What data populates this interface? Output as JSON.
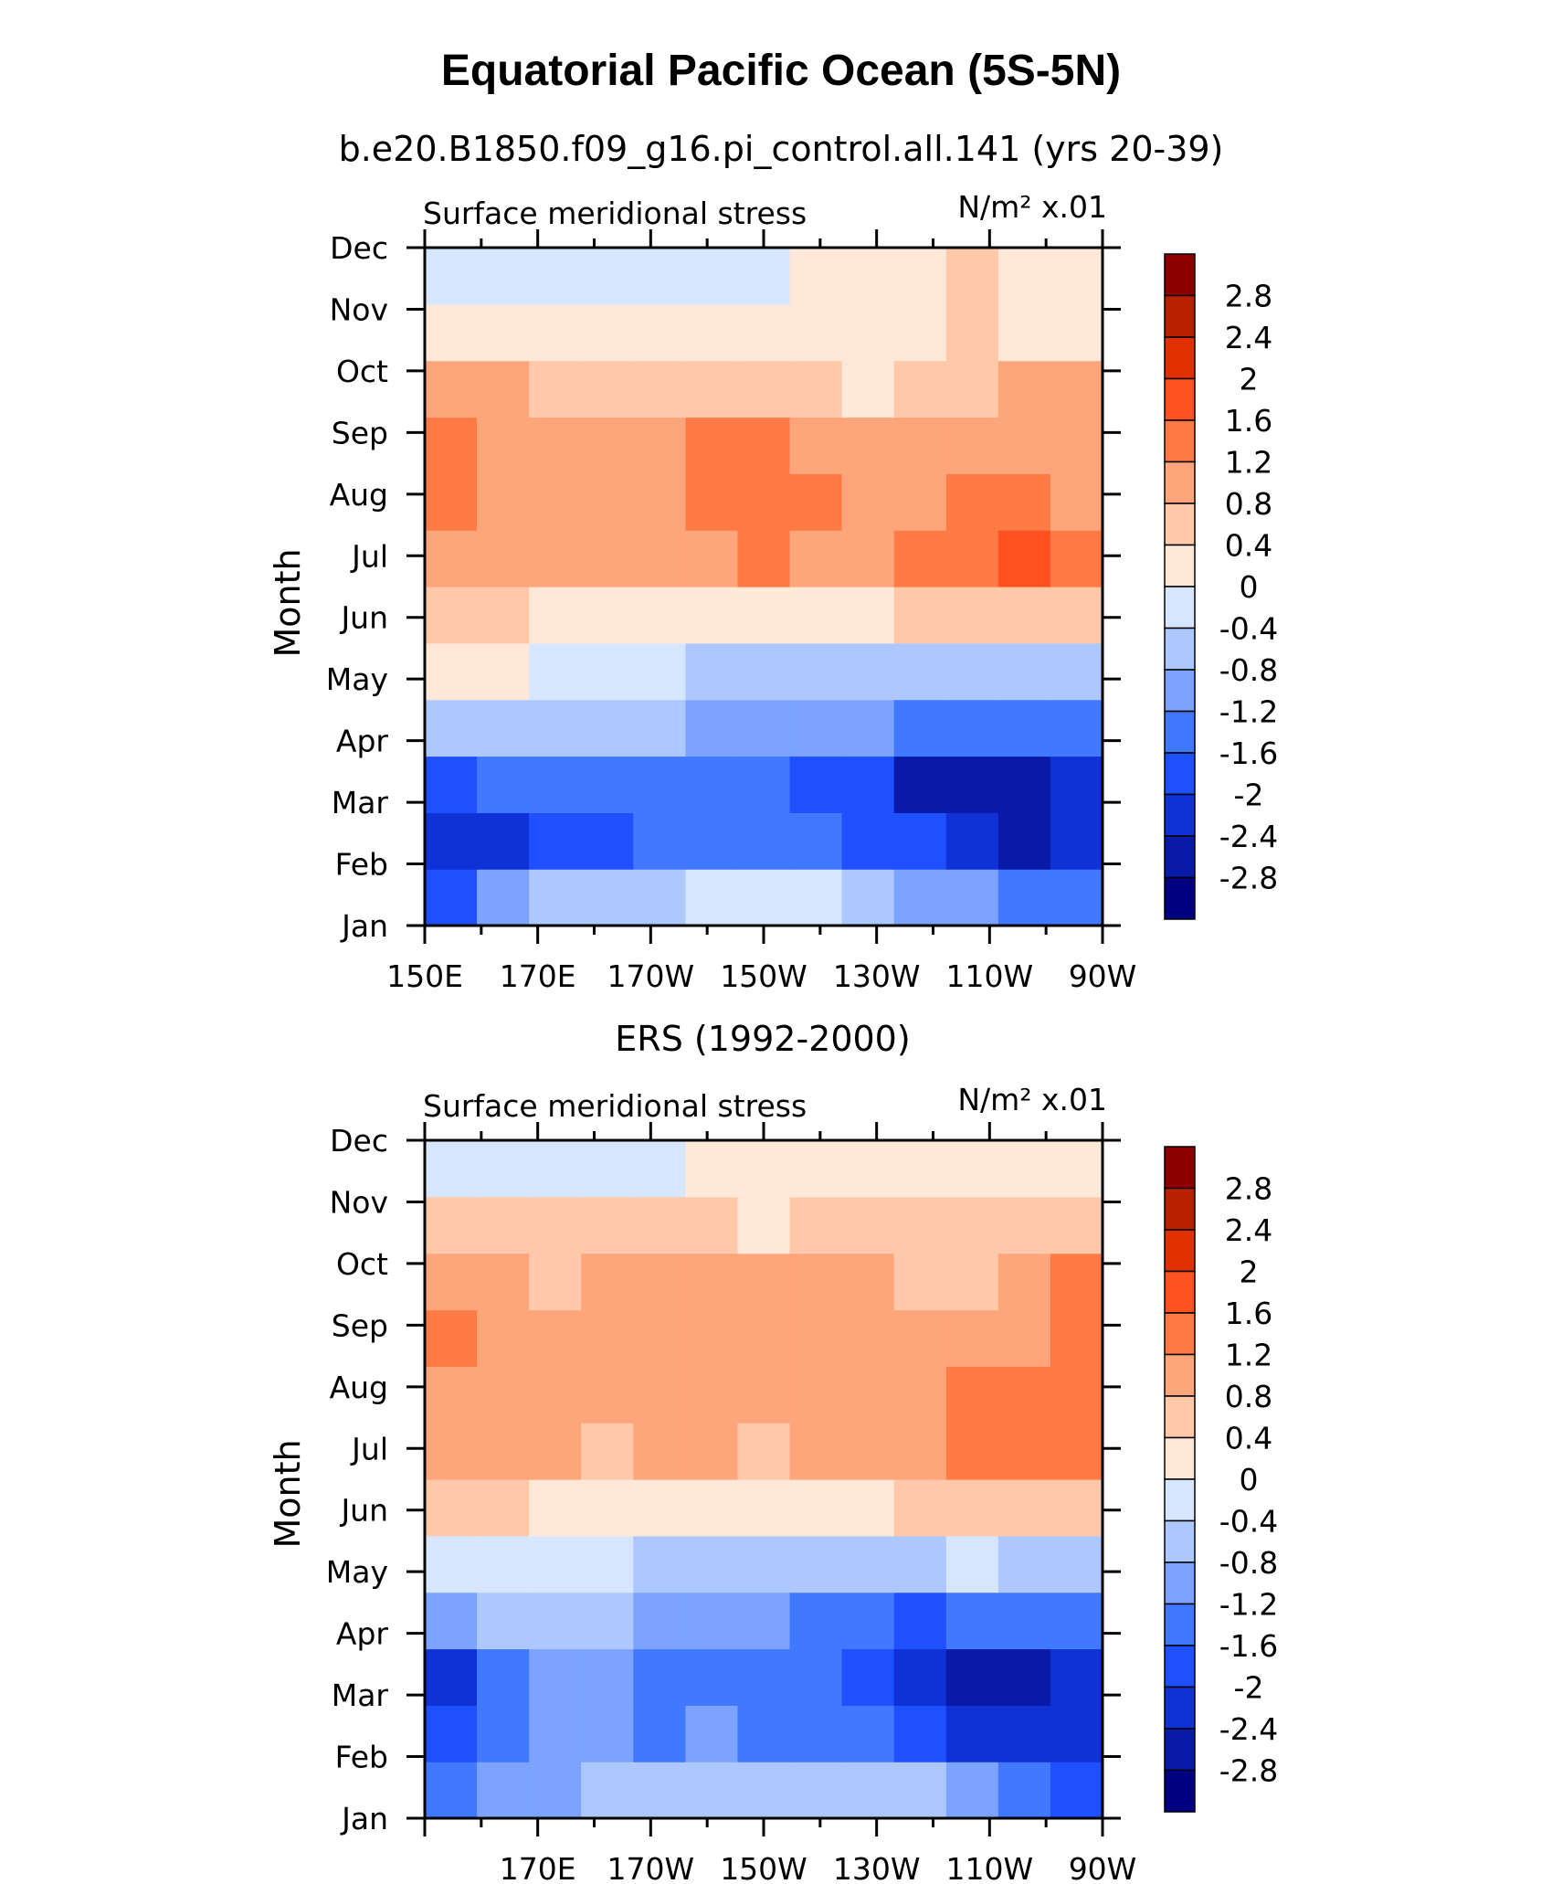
{
  "figure": {
    "title": "Equatorial Pacific Ocean (5S-5N)"
  },
  "chart_data": [
    {
      "type": "heatmap",
      "title": "b.e20.B1850.f09_g16.pi_control.all.141 (yrs 20-39)",
      "left_string": "Surface meridional stress",
      "units": "N/m² x.01",
      "ylabel": "Month",
      "x_ticklabels": [
        "150E",
        "170E",
        "170W",
        "150W",
        "130W",
        "110W",
        "90W"
      ],
      "x_values": [
        150,
        170,
        190,
        210,
        230,
        250,
        270
      ],
      "y": [
        "Jan",
        "Feb",
        "Mar",
        "Apr",
        "May",
        "Jun",
        "Jul",
        "Aug",
        "Sep",
        "Oct",
        "Nov",
        "Dec"
      ],
      "levels": [
        -2.8,
        -2.4,
        -2,
        -1.6,
        -1.2,
        -0.8,
        -0.4,
        0,
        0.4,
        0.8,
        1.2,
        1.6,
        2,
        2.4,
        2.8
      ],
      "level_labels": [
        "2.8",
        "2.4",
        "2",
        "1.6",
        "1.2",
        "0.8",
        "0.4",
        "0",
        "-0.4",
        "-0.8",
        "-1.2",
        "-1.6",
        "-2",
        "-2.4",
        "-2.8"
      ],
      "colors": [
        "#000080",
        "#0a1aa8",
        "#0f32d6",
        "#1e50ff",
        "#4078ff",
        "#7ba3ff",
        "#adc8ff",
        "#d6e6ff",
        "#ffe8d8",
        "#ffc8a8",
        "#ffa57c",
        "#ff7a45",
        "#ff5220",
        "#e03000",
        "#b82000",
        "#8c0000"
      ],
      "values": [
        [
          -1.8,
          -1.0,
          -0.8,
          -0.6,
          -0.5,
          -0.4,
          -0.3,
          -0.3,
          -0.6,
          -0.9,
          -1.2,
          -1.4,
          -1.6
        ],
        [
          -2.4,
          -2.2,
          -2.0,
          -1.8,
          -1.6,
          -1.5,
          -1.5,
          -1.5,
          -1.7,
          -2.0,
          -2.3,
          -2.5,
          -2.2
        ],
        [
          -2.0,
          -1.6,
          -1.4,
          -1.3,
          -1.5,
          -1.6,
          -1.6,
          -1.7,
          -2.0,
          -2.5,
          -2.8,
          -2.7,
          -2.2
        ],
        [
          -0.8,
          -0.6,
          -0.5,
          -0.6,
          -0.8,
          -1.1,
          -1.2,
          -1.2,
          -1.2,
          -1.3,
          -1.4,
          -1.4,
          -1.3
        ],
        [
          0.2,
          0.1,
          -0.1,
          -0.2,
          -0.4,
          -0.5,
          -0.5,
          -0.5,
          -0.5,
          -0.6,
          -0.6,
          -0.6,
          -0.7
        ],
        [
          0.5,
          0.4,
          0.3,
          0.2,
          0.1,
          0.2,
          0.2,
          0.2,
          0.3,
          0.4,
          0.5,
          0.6,
          0.7
        ],
        [
          1.0,
          0.9,
          0.8,
          0.8,
          0.8,
          1.1,
          1.2,
          1.0,
          0.8,
          1.2,
          1.4,
          1.6,
          1.3
        ],
        [
          1.3,
          1.1,
          1.0,
          1.0,
          1.1,
          1.4,
          1.5,
          1.3,
          1.0,
          1.1,
          1.3,
          1.3,
          1.1
        ],
        [
          1.3,
          1.0,
          0.9,
          0.9,
          1.0,
          1.2,
          1.2,
          1.0,
          0.8,
          0.8,
          0.9,
          1.0,
          0.9
        ],
        [
          0.9,
          0.8,
          0.7,
          0.7,
          0.7,
          0.6,
          0.5,
          0.4,
          0.3,
          0.5,
          0.7,
          0.8,
          0.8
        ],
        [
          0.3,
          0.3,
          0.3,
          0.3,
          0.2,
          0.2,
          0.1,
          0.1,
          0.2,
          0.3,
          0.5,
          0.3,
          0.3
        ],
        [
          -0.1,
          -0.1,
          -0.2,
          -0.2,
          -0.3,
          -0.2,
          -0.1,
          0.1,
          0.2,
          0.3,
          0.4,
          0.3,
          0.2
        ]
      ]
    },
    {
      "type": "heatmap",
      "title": "ERS (1992-2000)",
      "left_string": "Surface meridional stress",
      "units": "N/m² x.01",
      "ylabel": "Month",
      "x_ticklabels": [
        "170E",
        "170W",
        "150W",
        "130W",
        "110W",
        "90W"
      ],
      "x_values": [
        170,
        190,
        210,
        230,
        250,
        270
      ],
      "y": [
        "Jan",
        "Feb",
        "Mar",
        "Apr",
        "May",
        "Jun",
        "Jul",
        "Aug",
        "Sep",
        "Oct",
        "Nov",
        "Dec"
      ],
      "levels": [
        -2.8,
        -2.4,
        -2,
        -1.6,
        -1.2,
        -0.8,
        -0.4,
        0,
        0.4,
        0.8,
        1.2,
        1.6,
        2,
        2.4,
        2.8
      ],
      "level_labels": [
        "2.8",
        "2.4",
        "2",
        "1.6",
        "1.2",
        "0.8",
        "0.4",
        "0",
        "-0.4",
        "-0.8",
        "-1.2",
        "-1.6",
        "-2",
        "-2.4",
        "-2.8"
      ],
      "colors": [
        "#000080",
        "#0a1aa8",
        "#0f32d6",
        "#1e50ff",
        "#4078ff",
        "#7ba3ff",
        "#adc8ff",
        "#d6e6ff",
        "#ffe8d8",
        "#ffc8a8",
        "#ffa57c",
        "#ff7a45",
        "#ff5220",
        "#e03000",
        "#b82000",
        "#8c0000"
      ],
      "values": [
        [
          -1.3,
          -1.1,
          -0.9,
          -0.6,
          -0.7,
          -0.5,
          -0.5,
          -0.5,
          -0.6,
          -0.8,
          -1.1,
          -1.4,
          -1.7
        ],
        [
          -2.0,
          -1.6,
          -1.0,
          -1.1,
          -1.3,
          -1.2,
          -1.3,
          -1.3,
          -1.5,
          -2.0,
          -2.2,
          -2.4,
          -2.3
        ],
        [
          -2.1,
          -1.6,
          -1.0,
          -1.2,
          -1.4,
          -1.3,
          -1.4,
          -1.6,
          -2.0,
          -2.3,
          -2.5,
          -2.6,
          -2.3
        ],
        [
          -1.0,
          -0.8,
          -0.6,
          -0.8,
          -1.2,
          -1.1,
          -1.2,
          -1.4,
          -1.5,
          -1.7,
          -1.6,
          -1.5,
          -1.6
        ],
        [
          -0.3,
          -0.3,
          -0.2,
          -0.4,
          -0.5,
          -0.5,
          -0.6,
          -0.6,
          -0.6,
          -0.5,
          -0.4,
          -0.5,
          -0.6
        ],
        [
          0.4,
          0.4,
          0.3,
          0.2,
          0.3,
          0.3,
          0.2,
          0.3,
          0.3,
          0.4,
          0.4,
          0.5,
          0.7
        ],
        [
          0.9,
          1.0,
          0.8,
          0.7,
          0.9,
          0.8,
          0.6,
          0.9,
          1.0,
          1.0,
          1.3,
          1.4,
          1.3
        ],
        [
          1.1,
          1.0,
          0.8,
          0.9,
          1.0,
          0.9,
          0.9,
          1.0,
          1.1,
          0.9,
          1.2,
          1.4,
          1.4
        ],
        [
          1.3,
          1.1,
          0.8,
          0.9,
          1.0,
          1.0,
          0.8,
          1.0,
          1.0,
          0.9,
          1.0,
          1.1,
          1.4
        ],
        [
          0.9,
          0.9,
          0.7,
          0.8,
          0.9,
          0.8,
          0.8,
          0.9,
          0.8,
          0.6,
          0.7,
          0.9,
          1.3
        ],
        [
          0.4,
          0.5,
          0.4,
          0.4,
          0.5,
          0.4,
          0.3,
          0.4,
          0.4,
          0.4,
          0.6,
          0.6,
          0.7
        ],
        [
          -0.2,
          -0.2,
          -0.3,
          -0.2,
          -0.1,
          0.0,
          0.1,
          0.1,
          0.2,
          0.3,
          0.3,
          0.3,
          0.3
        ]
      ]
    }
  ]
}
